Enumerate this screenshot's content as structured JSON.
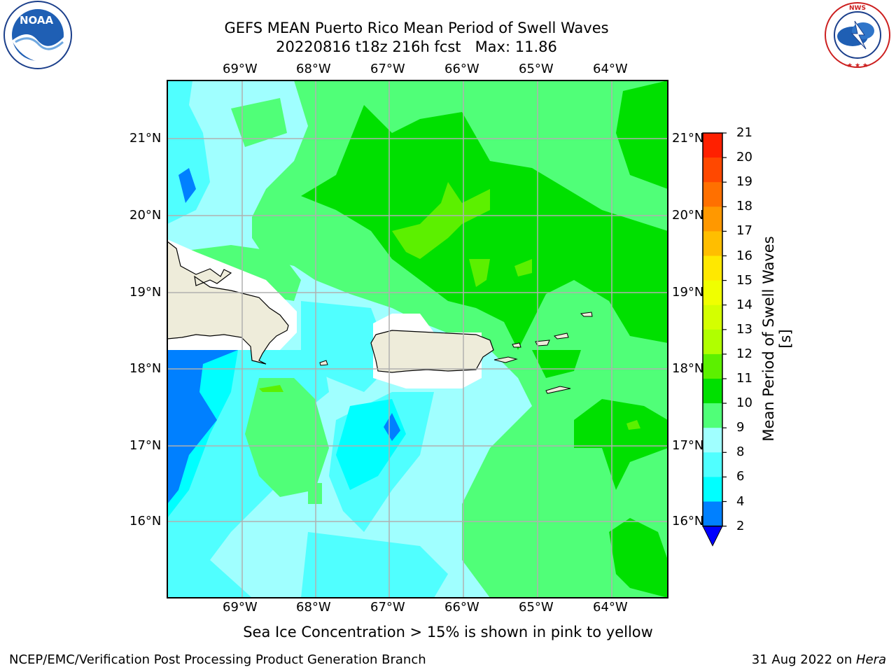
{
  "header": {
    "title_line1": "GEFS MEAN Puerto Rico Mean Period of Swell Waves",
    "title_line2": "20220816 t18z 216h fcst   Max: 11.86",
    "left_logo_text": "NOAA",
    "left_logo_ring": "NATIONAL OCEANIC AND ATMOSPHERIC ADMINISTRATION · U.S. DEPARTMENT OF COMMERCE",
    "right_logo_ring": "NATIONAL WEATHER SERVICE"
  },
  "map": {
    "lon_labels": [
      "69°W",
      "68°W",
      "67°W",
      "66°W",
      "65°W",
      "64°W"
    ],
    "lat_labels": [
      "21°N",
      "20°N",
      "19°N",
      "18°N",
      "17°N",
      "16°N"
    ],
    "land_color": "#eeecda",
    "grid_color": "#b0b0b0"
  },
  "colorbar": {
    "label": "Mean Period of Swell Waves [s]",
    "ticks": [
      "21",
      "20",
      "19",
      "18",
      "17",
      "16",
      "15",
      "14",
      "13",
      "12",
      "11",
      "10",
      "9",
      "8",
      "6",
      "4",
      "2"
    ],
    "colors": [
      "#ff0000",
      "#ff2000",
      "#ff4800",
      "#ff7000",
      "#ff9800",
      "#ffbe00",
      "#ffe800",
      "#f0ff00",
      "#d4ff00",
      "#b0ff00",
      "#5cf000",
      "#00e000",
      "#50ff78",
      "#a0ffff",
      "#50ffff",
      "#00ffff",
      "#0080ff",
      "#0000ff"
    ]
  },
  "footer": {
    "note": "Sea Ice Concentration > 15% is shown in pink to yellow",
    "left": "NCEP/EMC/Verification Post Processing Product Generation Branch",
    "right_prefix": "31 Aug 2022 on ",
    "right_host": "Hera"
  }
}
